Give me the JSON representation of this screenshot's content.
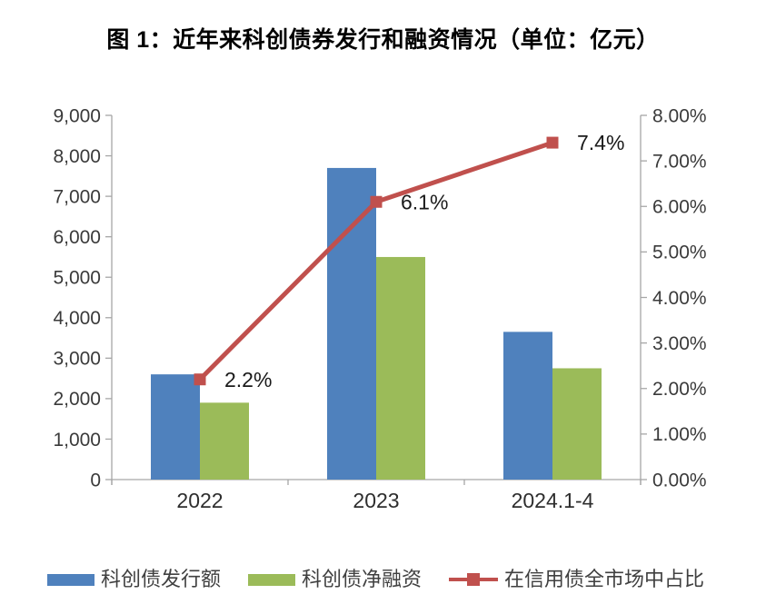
{
  "title": "图 1：近年来科创债券发行和融资情况（单位：亿元）",
  "colors": {
    "bar_issuance": "#4F81BD",
    "bar_net_financing": "#9BBB59",
    "line_share": "#C0504D",
    "axis": "#A6A6A6",
    "tick_text": "#3a3a3a",
    "legend_text": "#404040",
    "background": "#ffffff"
  },
  "chart_data": {
    "type": "bar",
    "subtype": "grouped bars with secondary-axis line",
    "title": "图 1：近年来科创债券发行和融资情况（单位：亿元）",
    "categories": [
      "2022",
      "2023",
      "2024.1-4"
    ],
    "series": [
      {
        "name": "科创债发行额",
        "kind": "bar",
        "axis": "left",
        "color": "#4F81BD",
        "values": [
          2600,
          7700,
          3650
        ]
      },
      {
        "name": "科创债净融资",
        "kind": "bar",
        "axis": "left",
        "color": "#9BBB59",
        "values": [
          1900,
          5500,
          2750
        ]
      },
      {
        "name": "在信用债全市场中占比",
        "kind": "line",
        "axis": "right",
        "color": "#C0504D",
        "values": [
          2.2,
          6.1,
          7.4
        ],
        "point_labels": [
          "2.2%",
          "6.1%",
          "7.4%"
        ]
      }
    ],
    "left_axis": {
      "min": 0,
      "max": 9000,
      "step": 1000,
      "ticks": [
        "0",
        "1,000",
        "2,000",
        "3,000",
        "4,000",
        "5,000",
        "6,000",
        "7,000",
        "8,000",
        "9,000"
      ]
    },
    "right_axis": {
      "min": 0,
      "max": 8,
      "step": 1,
      "ticks": [
        "0.00%",
        "1.00%",
        "2.00%",
        "3.00%",
        "4.00%",
        "5.00%",
        "6.00%",
        "7.00%",
        "8.00%"
      ]
    },
    "grid": false,
    "legend_position": "bottom",
    "xlabel": "",
    "ylabel": ""
  }
}
